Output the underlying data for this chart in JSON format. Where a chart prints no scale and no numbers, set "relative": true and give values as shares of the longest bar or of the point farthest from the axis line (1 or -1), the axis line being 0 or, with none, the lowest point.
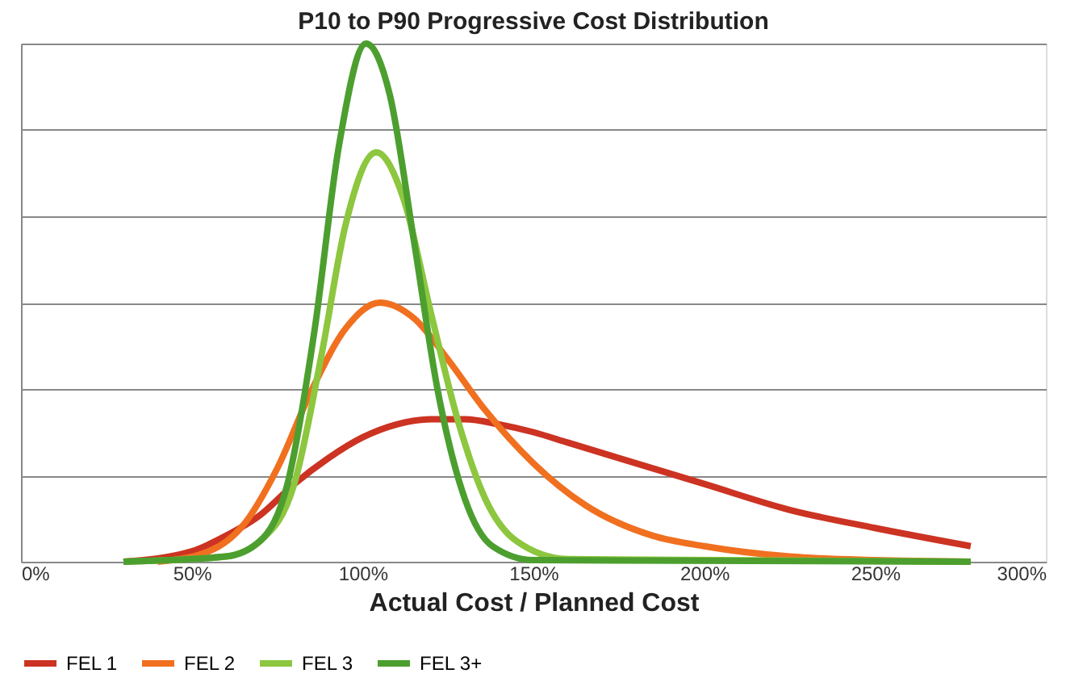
{
  "chart_data": {
    "type": "line",
    "title": "P10 to P90  Progressive Cost Distribution",
    "xlabel": "Actual Cost / Planned Cost",
    "relative": true,
    "grid": "y",
    "legend": "bottom",
    "marker": "none",
    "line_style": "solid",
    "xlim": [
      0,
      300
    ],
    "xticks": [
      {
        "value": 0,
        "label": "0%"
      },
      {
        "value": 50,
        "label": "50%"
      },
      {
        "value": 100,
        "label": "100%"
      },
      {
        "value": 150,
        "label": "150%"
      },
      {
        "value": 200,
        "label": "200%"
      },
      {
        "value": 250,
        "label": "250%"
      },
      {
        "value": 300,
        "label": "300%"
      }
    ],
    "series": [
      {
        "name": "FEL 1",
        "color": "#cc3322",
        "x": [
          30,
          50,
          60,
          70,
          80,
          90,
          100,
          110,
          120,
          130,
          140,
          150,
          160,
          175,
          200,
          225,
          250,
          278
        ],
        "values": [
          0,
          0.02,
          0.05,
          0.09,
          0.15,
          0.2,
          0.24,
          0.265,
          0.275,
          0.275,
          0.265,
          0.25,
          0.23,
          0.2,
          0.15,
          0.1,
          0.065,
          0.03
        ]
      },
      {
        "name": "FEL 2",
        "color": "#f07020",
        "x": [
          40,
          55,
          65,
          75,
          85,
          95,
          105,
          115,
          125,
          135,
          150,
          165,
          185,
          200,
          225,
          250,
          278
        ],
        "values": [
          0,
          0.02,
          0.07,
          0.18,
          0.33,
          0.45,
          0.5,
          0.47,
          0.39,
          0.3,
          0.19,
          0.11,
          0.05,
          0.03,
          0.01,
          0.003,
          0
        ]
      },
      {
        "name": "FEL 3",
        "color": "#8dc63f",
        "x": [
          30,
          60,
          70,
          80,
          88,
          95,
          104,
          112,
          120,
          128,
          136,
          145,
          160,
          278
        ],
        "values": [
          0,
          0.01,
          0.04,
          0.15,
          0.4,
          0.65,
          0.79,
          0.7,
          0.48,
          0.27,
          0.12,
          0.04,
          0.005,
          0
        ]
      },
      {
        "name": "FEL 3+",
        "color": "#4c9f2f",
        "x": [
          30,
          60,
          70,
          78,
          86,
          93,
          101,
          108,
          115,
          122,
          130,
          138,
          150,
          278
        ],
        "values": [
          0,
          0.01,
          0.04,
          0.15,
          0.45,
          0.8,
          1.0,
          0.9,
          0.62,
          0.33,
          0.12,
          0.03,
          0.003,
          0
        ]
      }
    ]
  }
}
